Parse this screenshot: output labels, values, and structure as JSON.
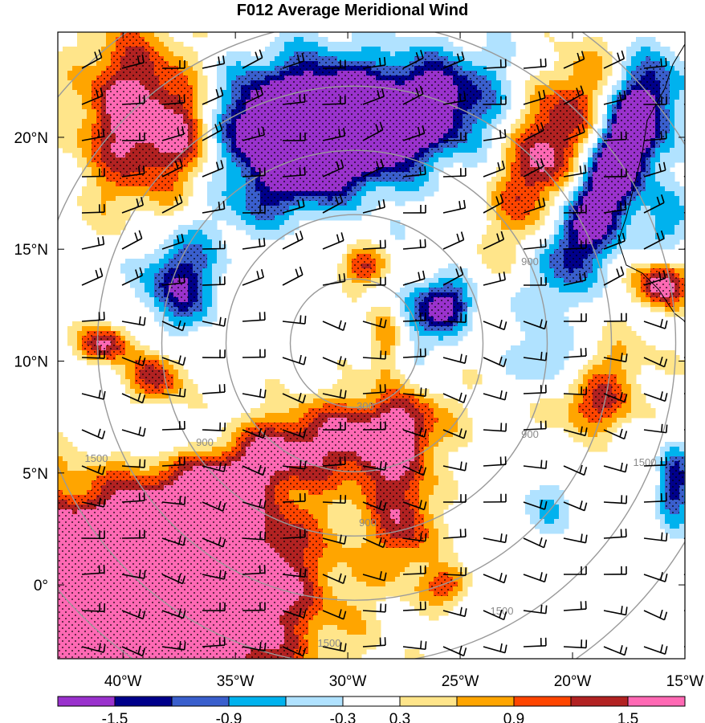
{
  "chart_data": {
    "type": "heatmap",
    "title": "F012 Average Meridional Wind",
    "x_ticks": [
      "40°W",
      "35°W",
      "30°W",
      "25°W",
      "20°W",
      "15°W"
    ],
    "x_tick_values": [
      -40,
      -35,
      -30,
      -25,
      -20,
      -15
    ],
    "y_ticks": [
      "20°N",
      "15°N",
      "10°N",
      "5°N",
      "0°"
    ],
    "y_tick_values": [
      20,
      15,
      10,
      5,
      0
    ],
    "xlim": [
      -42.9,
      -15
    ],
    "ylim": [
      -3.3,
      24.7
    ],
    "colorbar": {
      "boundaries": [
        -1.8,
        -1.5,
        -1.2,
        -0.9,
        -0.6,
        -0.3,
        0.3,
        0.6,
        0.9,
        1.2,
        1.5,
        1.8
      ],
      "colors": [
        "#9a32cd",
        "#00008b",
        "#3a5fcd",
        "#00b2ee",
        "#b0e2ff",
        "#ffffff",
        "#ffe58a",
        "#ffa500",
        "#ff4500",
        "#b22222",
        "#ff69b4"
      ],
      "labels": [
        "-1.5",
        "-0.9",
        "-0.3",
        "0.3",
        "0.9",
        "1.5"
      ],
      "label_values": [
        -1.5,
        -0.9,
        -0.3,
        0.3,
        0.9,
        1.5
      ]
    },
    "range_rings": {
      "center": [
        -29.7,
        10.8
      ],
      "labels": [
        "300",
        "600",
        "900",
        "1200",
        "1500",
        "1800"
      ],
      "label_text": [
        "300",
        "900",
        "1500",
        "900",
        "1500",
        "900",
        "1500",
        "900",
        "1500"
      ]
    },
    "wind_field": "easterly trade winds, barbs plotted on regular grid",
    "stippling": "significance stippling over strong positive/negative anomalies"
  }
}
